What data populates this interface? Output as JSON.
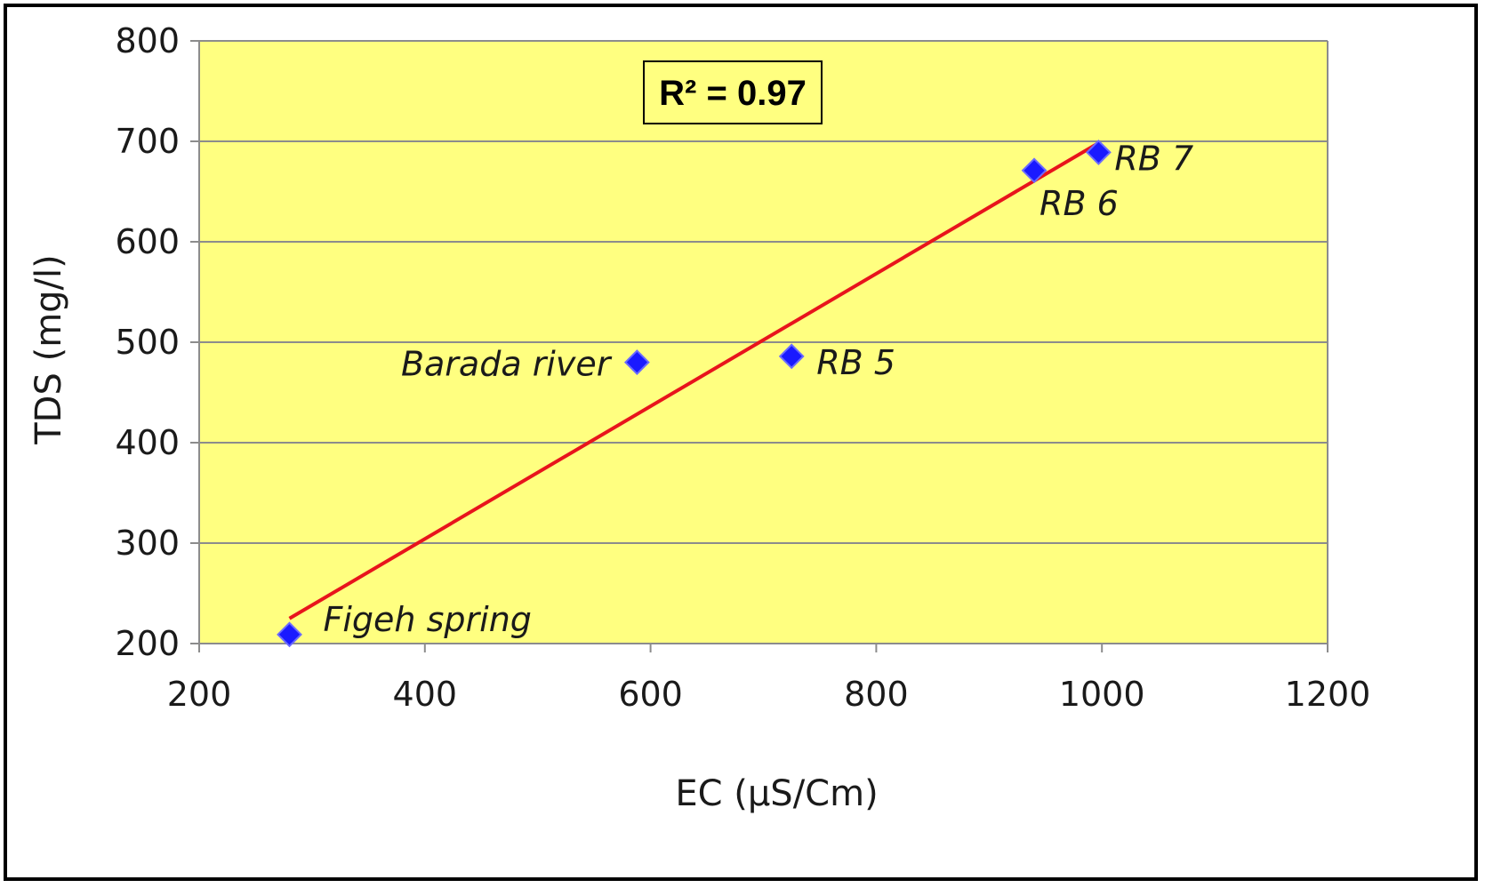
{
  "chart_data": {
    "type": "scatter",
    "title": "",
    "xlabel": "EC (µS/Cm)",
    "ylabel": "TDS (mg/l)",
    "xlim": [
      200,
      1200
    ],
    "ylim": [
      200,
      800
    ],
    "xticks": [
      200,
      400,
      600,
      800,
      1000,
      1200
    ],
    "yticks": [
      200,
      300,
      400,
      500,
      600,
      700,
      800
    ],
    "grid": "horizontal",
    "colors": {
      "plot_background": "#ffff80",
      "marker": "#1a1aff",
      "trendline": "#e8141c",
      "gridline": "#8c8c8c"
    },
    "points": [
      {
        "label": "Figeh spring",
        "x": 280,
        "y": 209
      },
      {
        "label": "Barada river",
        "x": 588,
        "y": 480
      },
      {
        "label": "RB 5",
        "x": 725,
        "y": 486
      },
      {
        "label": "RB 6",
        "x": 940,
        "y": 671
      },
      {
        "label": "RB 7",
        "x": 997,
        "y": 689
      }
    ],
    "trendline": {
      "type": "linear",
      "x_start": 280,
      "y_start": 225,
      "x_end": 995,
      "y_end": 697
    },
    "annotation": "R² = 0.97"
  }
}
